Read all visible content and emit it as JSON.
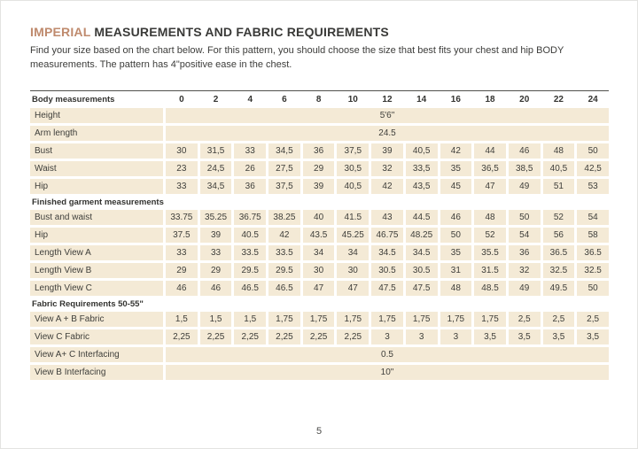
{
  "header": {
    "title_highlight": "IMPERIAL",
    "title_rest": " MEASUREMENTS AND FABRIC REQUIREMENTS",
    "intro": "Find your size based on the chart below. For this pattern, you should choose the size that best fits your chest and hip BODY measurements. The pattern has 4\"positive ease in the chest."
  },
  "colors": {
    "accent": "#bf8a6d",
    "row_background": "#f4ead6",
    "text": "#3e3e3a",
    "table_topline": "#50504c"
  },
  "table": {
    "header": {
      "label": "Body measurements",
      "sizes": [
        "0",
        "2",
        "4",
        "6",
        "8",
        "10",
        "12",
        "14",
        "16",
        "18",
        "20",
        "22",
        "24"
      ]
    },
    "rows": [
      {
        "type": "merged",
        "label": "Height",
        "value": "5'6\""
      },
      {
        "type": "merged",
        "label": "Arm length",
        "value": "24.5"
      },
      {
        "type": "data",
        "label": "Bust",
        "values": [
          "30",
          "31,5",
          "33",
          "34,5",
          "36",
          "37,5",
          "39",
          "40,5",
          "42",
          "44",
          "46",
          "48",
          "50"
        ]
      },
      {
        "type": "data",
        "label": "Waist",
        "values": [
          "23",
          "24,5",
          "26",
          "27,5",
          "29",
          "30,5",
          "32",
          "33,5",
          "35",
          "36,5",
          "38,5",
          "40,5",
          "42,5"
        ]
      },
      {
        "type": "data",
        "label": "Hip",
        "values": [
          "33",
          "34,5",
          "36",
          "37,5",
          "39",
          "40,5",
          "42",
          "43,5",
          "45",
          "47",
          "49",
          "51",
          "53"
        ]
      },
      {
        "type": "section",
        "label": "Finished garment measurements"
      },
      {
        "type": "data",
        "label": "Bust and waist",
        "values": [
          "33.75",
          "35.25",
          "36.75",
          "38.25",
          "40",
          "41.5",
          "43",
          "44.5",
          "46",
          "48",
          "50",
          "52",
          "54"
        ]
      },
      {
        "type": "data",
        "label": "Hip",
        "values": [
          "37.5",
          "39",
          "40.5",
          "42",
          "43.5",
          "45.25",
          "46.75",
          "48.25",
          "50",
          "52",
          "54",
          "56",
          "58"
        ]
      },
      {
        "type": "data",
        "label": "Length View A",
        "values": [
          "33",
          "33",
          "33.5",
          "33.5",
          "34",
          "34",
          "34.5",
          "34.5",
          "35",
          "35.5",
          "36",
          "36.5",
          "36.5"
        ]
      },
      {
        "type": "data",
        "label": "Length View B",
        "values": [
          "29",
          "29",
          "29.5",
          "29.5",
          "30",
          "30",
          "30.5",
          "30.5",
          "31",
          "31.5",
          "32",
          "32.5",
          "32.5"
        ]
      },
      {
        "type": "data",
        "label": "Length View C",
        "values": [
          "46",
          "46",
          "46.5",
          "46.5",
          "47",
          "47",
          "47.5",
          "47.5",
          "48",
          "48.5",
          "49",
          "49.5",
          "50"
        ]
      },
      {
        "type": "section",
        "label": "Fabric Requirements  50-55\""
      },
      {
        "type": "data",
        "label": "View A + B Fabric",
        "values": [
          "1,5",
          "1,5",
          "1,5",
          "1,75",
          "1,75",
          "1,75",
          "1,75",
          "1,75",
          "1,75",
          "1,75",
          "2,5",
          "2,5",
          "2,5"
        ]
      },
      {
        "type": "data",
        "label": "View C Fabric",
        "values": [
          "2,25",
          "2,25",
          "2,25",
          "2,25",
          "2,25",
          "2,25",
          "3",
          "3",
          "3",
          "3,5",
          "3,5",
          "3,5",
          "3,5"
        ]
      },
      {
        "type": "merged",
        "label": "View A+ C Interfacing",
        "value": "0.5"
      },
      {
        "type": "merged",
        "label": "View B Interfacing",
        "value": "10\""
      }
    ]
  },
  "footer": {
    "page_number": "5"
  }
}
